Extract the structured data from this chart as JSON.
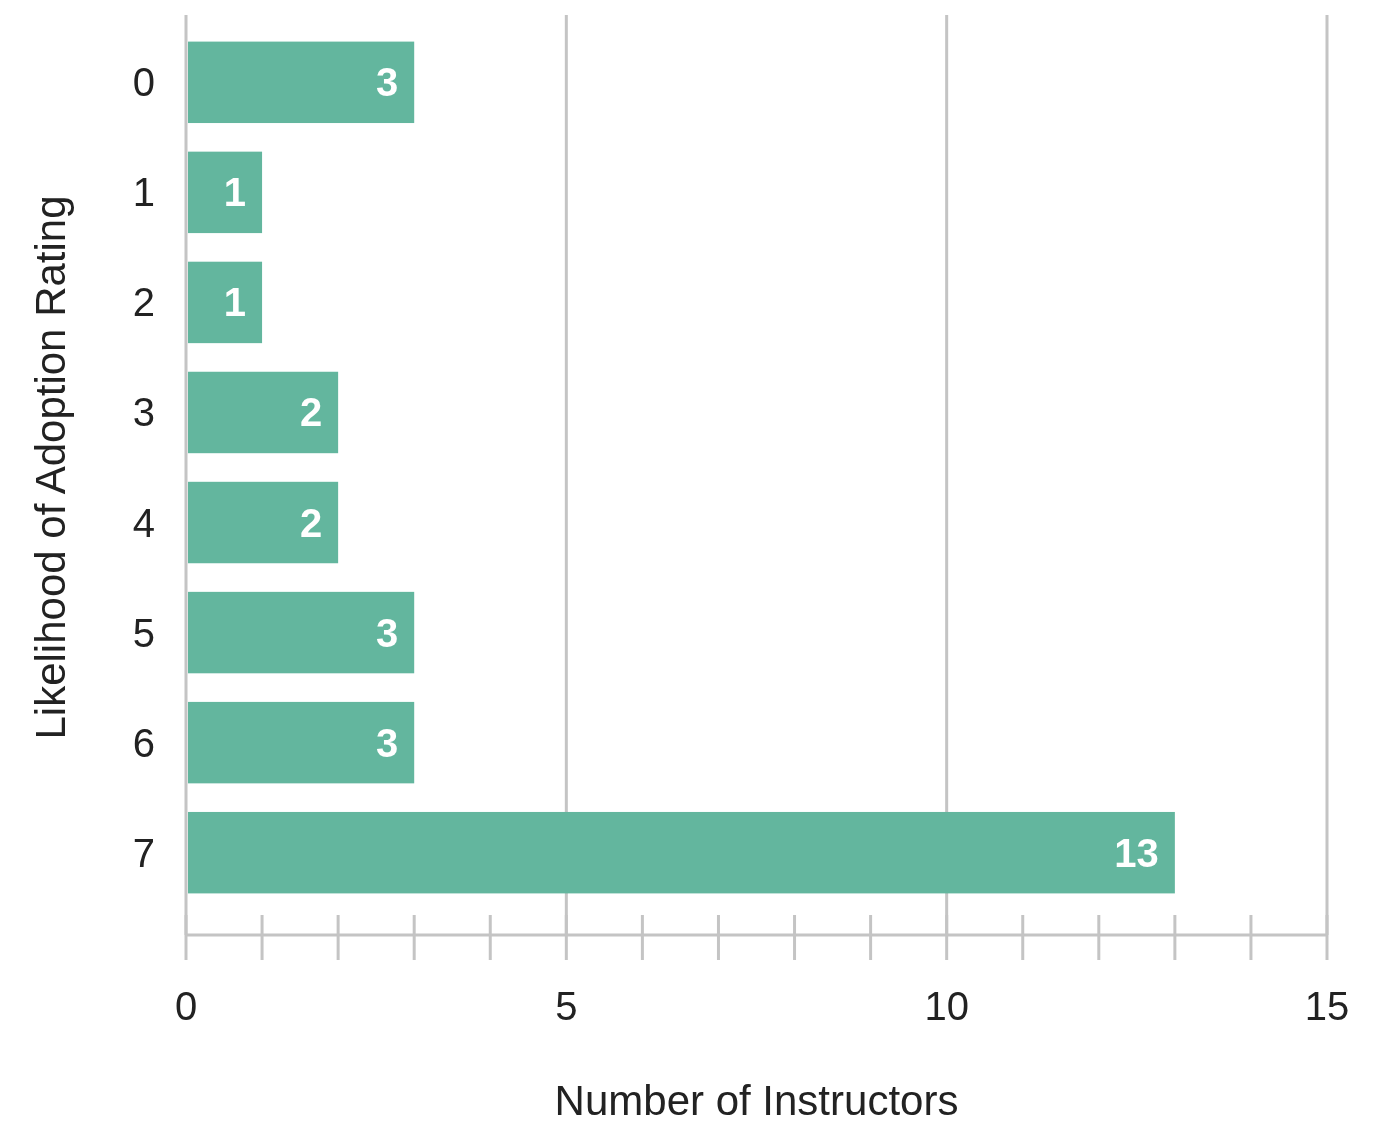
{
  "chart_data": {
    "type": "bar",
    "orientation": "horizontal",
    "xlabel": "Number of Instructors",
    "ylabel": "Likelihood of Adoption Rating",
    "categories": [
      "0",
      "1",
      "2",
      "3",
      "4",
      "5",
      "6",
      "7"
    ],
    "values": [
      3,
      1,
      1,
      2,
      2,
      3,
      3,
      13
    ],
    "color": "#63b69e",
    "data_labels": true,
    "xlim": [
      0,
      15
    ],
    "xticks": [
      0,
      5,
      10,
      15
    ],
    "grid": "x"
  }
}
